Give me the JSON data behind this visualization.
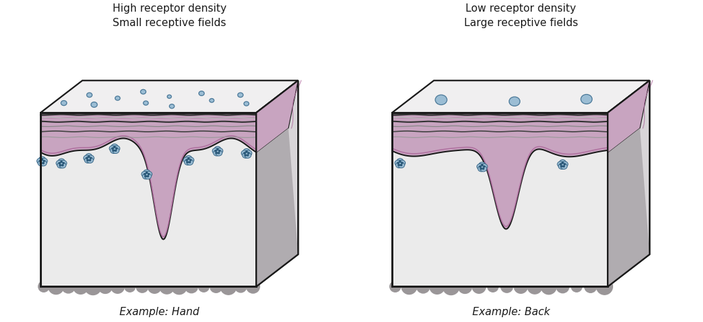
{
  "bg_color": "#ffffff",
  "title_left": "High receptor density\nSmall receptive fields",
  "title_right": "Low receptor density\nLarge receptive fields",
  "label_left": "Example: Hand",
  "label_right": "Example: Back",
  "skin_color": "#ebebeb",
  "top_face_color": "#f0eff0",
  "right_face_color": "#d8d5d8",
  "dermis_color": "#c8a4c0",
  "dermis_inner_line": "#b070a0",
  "outline_color": "#1a1a1a",
  "stratum_dark": "#555555",
  "stratum_light": "#aaaaaa",
  "receptor_fill": "#9bbdd4",
  "receptor_edge": "#4a7898",
  "meissner_fill": "#9bbdd4",
  "meissner_edge": "#3a6888",
  "bump_color": "#9a9698",
  "right_derm_color": "#c8a4c0",
  "right_gray_color": "#b0acb0"
}
